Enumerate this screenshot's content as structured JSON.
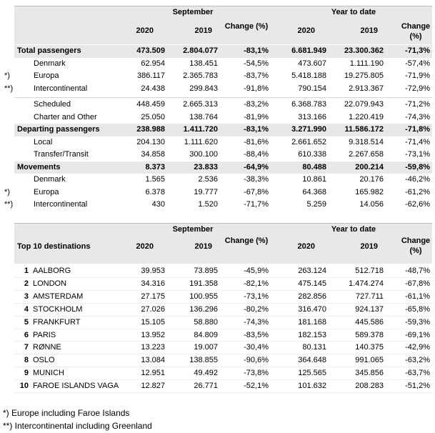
{
  "table1": {
    "header": {
      "september": "September",
      "ytd": "Year to date",
      "columns": [
        "2020",
        "2019",
        "Change (%)",
        "2020",
        "2019",
        "Change (%)"
      ]
    },
    "rows": [
      {
        "marker": null,
        "label": "Total passengers",
        "values": [
          "473.509",
          "2.804.077",
          "-83,1%",
          "6.681.949",
          "23.300.362",
          "-71,3%"
        ]
      },
      {
        "marker": null,
        "label": "Denmark",
        "values": [
          "62.954",
          "138.451",
          "-54,5%",
          "473.607",
          "1.111.190",
          "-57,4%"
        ]
      },
      {
        "marker": "*)",
        "label": "Europa",
        "values": [
          "386.117",
          "2.365.783",
          "-83,7%",
          "5.418.188",
          "19.275.805",
          "-71,9%"
        ]
      },
      {
        "marker": "**)",
        "label": "Intercontinental",
        "values": [
          "24.438",
          "299.843",
          "-91,8%",
          "790.154",
          "2.913.367",
          "-72,9%"
        ]
      },
      {
        "marker": null,
        "label": "Scheduled",
        "values": [
          "448.459",
          "2.665.313",
          "-83,2%",
          "6.368.783",
          "22.079.943",
          "-71,2%"
        ]
      },
      {
        "marker": null,
        "label": "Charter and Other",
        "values": [
          "25.050",
          "138.764",
          "-81,9%",
          "313.166",
          "1.220.419",
          "-74,3%"
        ]
      },
      {
        "marker": null,
        "label": "Departing passengers",
        "values": [
          "238.988",
          "1.411.720",
          "-83,1%",
          "3.271.990",
          "11.586.172",
          "-71,8%"
        ]
      },
      {
        "marker": null,
        "label": "Local",
        "values": [
          "204.130",
          "1.111.620",
          "-81,6%",
          "2.661.652",
          "9.318.514",
          "-71,4%"
        ]
      },
      {
        "marker": null,
        "label": "Transfer/Transit",
        "values": [
          "34.858",
          "300.100",
          "-88,4%",
          "610.338",
          "2.267.658",
          "-73,1%"
        ]
      },
      {
        "marker": null,
        "label": "Movements",
        "values": [
          "8.373",
          "23.833",
          "-64,9%",
          "80.488",
          "200.214",
          "-59,8%"
        ]
      },
      {
        "marker": null,
        "label": "Denmark",
        "values": [
          "1.565",
          "2.536",
          "-38,3%",
          "10.861",
          "20.176",
          "-46,2%"
        ]
      },
      {
        "marker": "*)",
        "label": "Europa",
        "values": [
          "6.378",
          "19.777",
          "-67,8%",
          "64.368",
          "165.982",
          "-61,2%"
        ]
      },
      {
        "marker": "**)",
        "label": "Intercontinental",
        "values": [
          "430",
          "1.520",
          "-71,7%",
          "5.259",
          "14.056",
          "-62,6%"
        ]
      }
    ]
  },
  "table2": {
    "header": {
      "september": "September",
      "ytd": "Year to date",
      "title": "Top 10 destinations",
      "columns": [
        "2020",
        "2019",
        "Change (%)",
        "2020",
        "2019",
        "Change (%)"
      ]
    },
    "rows": [
      {
        "rank": "1",
        "label": "AALBORG",
        "values": [
          "39.953",
          "73.895",
          "-45,9%",
          "263.124",
          "512.718",
          "-48,7%"
        ]
      },
      {
        "rank": "2",
        "label": "LONDON",
        "values": [
          "34.316",
          "191.358",
          "-82,1%",
          "475.145",
          "1.474.274",
          "-67,8%"
        ]
      },
      {
        "rank": "3",
        "label": "AMSTERDAM",
        "values": [
          "27.175",
          "100.955",
          "-73,1%",
          "282.856",
          "727.711",
          "-61,1%"
        ]
      },
      {
        "rank": "4",
        "label": "STOCKHOLM",
        "values": [
          "27.026",
          "136.296",
          "-80,2%",
          "316.470",
          "924.137",
          "-65,8%"
        ]
      },
      {
        "rank": "5",
        "label": "FRANKFURT",
        "values": [
          "15.105",
          "58.880",
          "-74,3%",
          "181.168",
          "445.586",
          "-59,3%"
        ]
      },
      {
        "rank": "6",
        "label": "PARIS",
        "values": [
          "13.952",
          "84.809",
          "-83,5%",
          "182.153",
          "589.378",
          "-69,1%"
        ]
      },
      {
        "rank": "7",
        "label": "RØNNE",
        "values": [
          "13.223",
          "19.007",
          "-30,4%",
          "80.131",
          "140.375",
          "-42,9%"
        ]
      },
      {
        "rank": "8",
        "label": "OSLO",
        "values": [
          "13.084",
          "138.855",
          "-90,6%",
          "364.648",
          "991.065",
          "-63,2%"
        ]
      },
      {
        "rank": "9",
        "label": "MUNICH",
        "values": [
          "12.951",
          "49.492",
          "-73,8%",
          "125.565",
          "345.856",
          "-63,7%"
        ]
      },
      {
        "rank": "10",
        "label": "FAROE ISLANDS VAGA",
        "values": [
          "12.827",
          "26.771",
          "-52,1%",
          "101.632",
          "208.283",
          "-51,2%"
        ]
      }
    ]
  },
  "footnotes": [
    "*) Europe including Faroe Islands",
    "**) Intercontinental including Greenland"
  ]
}
